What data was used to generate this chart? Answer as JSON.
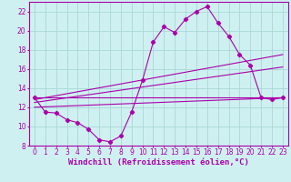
{
  "bg_color": "#cff0f0",
  "line_color": "#aa00aa",
  "grid_color": "#a8d8d8",
  "xlabel": "Windchill (Refroidissement éolien,°C)",
  "xlabel_fontsize": 6.5,
  "tick_fontsize": 5.5,
  "ylim": [
    8,
    23
  ],
  "xlim": [
    -0.5,
    23.5
  ],
  "yticks": [
    8,
    10,
    12,
    14,
    16,
    18,
    20,
    22
  ],
  "xticks": [
    0,
    1,
    2,
    3,
    4,
    5,
    6,
    7,
    8,
    9,
    10,
    11,
    12,
    13,
    14,
    15,
    16,
    17,
    18,
    19,
    20,
    21,
    22,
    23
  ],
  "series1_x": [
    0,
    1,
    2,
    3,
    4,
    5,
    6,
    7,
    8,
    9,
    10,
    11,
    12,
    13,
    14,
    15,
    16,
    17,
    18,
    19,
    20,
    21,
    22,
    23
  ],
  "series1_y": [
    13.0,
    11.5,
    11.4,
    10.7,
    10.4,
    9.7,
    8.6,
    8.4,
    9.0,
    11.5,
    14.8,
    18.8,
    20.4,
    19.8,
    21.2,
    22.0,
    22.5,
    20.8,
    19.4,
    17.5,
    16.4,
    13.0,
    12.8,
    13.0
  ],
  "line1_x": [
    0,
    23
  ],
  "line1_y": [
    13.0,
    13.0
  ],
  "line2_x": [
    0,
    23
  ],
  "line2_y": [
    12.8,
    17.5
  ],
  "line3_x": [
    0,
    23
  ],
  "line3_y": [
    12.5,
    16.2
  ],
  "line4_x": [
    0,
    23
  ],
  "line4_y": [
    12.0,
    13.0
  ]
}
